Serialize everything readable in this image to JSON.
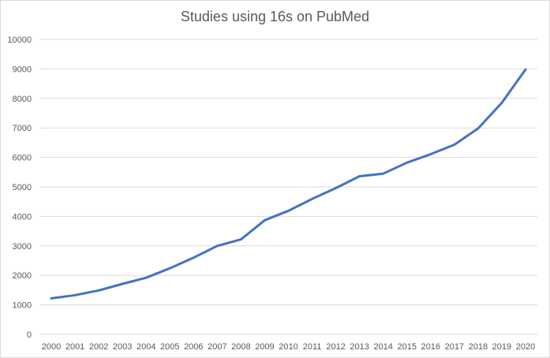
{
  "chart_data": {
    "type": "line",
    "title": "Studies using 16s on PubMed",
    "xlabel": "",
    "ylabel": "",
    "x": [
      "2000",
      "2001",
      "2002",
      "2003",
      "2004",
      "2005",
      "2006",
      "2007",
      "2008",
      "2009",
      "2010",
      "2011",
      "2012",
      "2013",
      "2014",
      "2015",
      "2016",
      "2017",
      "2018",
      "2019",
      "2020"
    ],
    "series": [
      {
        "values": [
          1220,
          1330,
          1490,
          1710,
          1920,
          2240,
          2600,
          3000,
          3220,
          3870,
          4190,
          4590,
          4960,
          5360,
          5450,
          5820,
          6110,
          6430,
          6980,
          7850,
          8980
        ],
        "color": "#4472c4"
      }
    ],
    "ylim": [
      0,
      10000
    ],
    "yticks": [
      "0",
      "1000",
      "2000",
      "3000",
      "4000",
      "5000",
      "6000",
      "7000",
      "8000",
      "9000",
      "10000"
    ],
    "grid": true,
    "legend": "none"
  }
}
